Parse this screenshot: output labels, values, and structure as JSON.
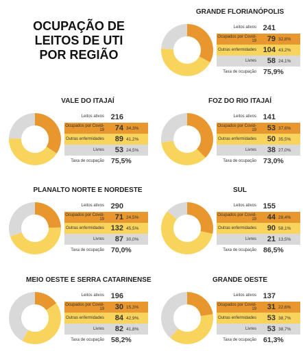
{
  "title": "OCUPAÇÃO DE LEITOS DE UTI POR REGIÃO",
  "chart_data": [
    {
      "type": "pie",
      "title": "GRANDE FLORIANÓPOLIS",
      "total_label": "Leitos ativos",
      "total": 241,
      "categories": [
        "Ocupados por Covid-19",
        "Outras enfermidades",
        "Livres"
      ],
      "colors": [
        "#e8962e",
        "#f9d45c",
        "#d9d9d9"
      ],
      "values": [
        79,
        104,
        58
      ],
      "percents": [
        {
          "value": 32.8,
          "label": "32,8%"
        },
        {
          "value": 43.2,
          "label": "43,2%"
        },
        {
          "value": 24.1,
          "label": "24,1%"
        }
      ],
      "rate_label": "Taxa de ocupação",
      "rate": {
        "value": 75.9,
        "label": "75,9%"
      }
    },
    {
      "type": "pie",
      "title": "VALE DO ITAJAÍ",
      "total_label": "Leitos ativos",
      "total": 216,
      "categories": [
        "Ocupados por Covid-19",
        "Outras enfermidades",
        "Livres"
      ],
      "colors": [
        "#e8962e",
        "#f9d45c",
        "#d9d9d9"
      ],
      "values": [
        74,
        89,
        53
      ],
      "percents": [
        {
          "value": 34.3,
          "label": "34,3%"
        },
        {
          "value": 41.2,
          "label": "41,2%"
        },
        {
          "value": 24.5,
          "label": "24,5%"
        }
      ],
      "rate_label": "Taxa de ocupação",
      "rate": {
        "value": 75.5,
        "label": "75,5%"
      }
    },
    {
      "type": "pie",
      "title": "FOZ DO RIO ITAJAÍ",
      "total_label": "Leitos ativos",
      "total": 141,
      "categories": [
        "Ocupados por Covid-19",
        "Outras enfermidades",
        "Livres"
      ],
      "colors": [
        "#e8962e",
        "#f9d45c",
        "#d9d9d9"
      ],
      "values": [
        53,
        50,
        38
      ],
      "percents": [
        {
          "value": 37.6,
          "label": "37,6%"
        },
        {
          "value": 35.5,
          "label": "35,5%"
        },
        {
          "value": 27.0,
          "label": "27,0%"
        }
      ],
      "rate_label": "Taxa de ocupação",
      "rate": {
        "value": 73.0,
        "label": "73,0%"
      }
    },
    {
      "type": "pie",
      "title": "PLANALTO NORTE E NORDESTE",
      "total_label": "Leitos ativos",
      "total": 290,
      "categories": [
        "Ocupados por Covid-19",
        "Outras enfermidades",
        "Livres"
      ],
      "colors": [
        "#e8962e",
        "#f9d45c",
        "#d9d9d9"
      ],
      "values": [
        71,
        132,
        87
      ],
      "percents": [
        {
          "value": 24.5,
          "label": "24,5%"
        },
        {
          "value": 45.5,
          "label": "45,5%"
        },
        {
          "value": 30.0,
          "label": "30,0%"
        }
      ],
      "rate_label": "Taxa de ocupação",
      "rate": {
        "value": 70.0,
        "label": "70,0%"
      }
    },
    {
      "type": "pie",
      "title": "SUL",
      "total_label": "Leitos ativos",
      "total": 155,
      "categories": [
        "Ocupados por Covid-19",
        "Outras enfermidades",
        "Livres"
      ],
      "colors": [
        "#e8962e",
        "#f9d45c",
        "#d9d9d9"
      ],
      "values": [
        44,
        90,
        21
      ],
      "percents": [
        {
          "value": 28.4,
          "label": "28,4%"
        },
        {
          "value": 58.1,
          "label": "58,1%"
        },
        {
          "value": 13.5,
          "label": "13,5%"
        }
      ],
      "rate_label": "Taxa de ocupação",
      "rate": {
        "value": 86.5,
        "label": "86,5%"
      }
    },
    {
      "type": "pie",
      "title": "MEIO OESTE E SERRA CATARINENSE",
      "total_label": "Leitos ativos",
      "total": 196,
      "categories": [
        "Ocupados por Covid-19",
        "Outras enfermidades",
        "Livres"
      ],
      "colors": [
        "#e8962e",
        "#f9d45c",
        "#d9d9d9"
      ],
      "values": [
        30,
        84,
        82
      ],
      "percents": [
        {
          "value": 15.3,
          "label": "15,3%"
        },
        {
          "value": 42.9,
          "label": "42,9%"
        },
        {
          "value": 41.8,
          "label": "41,8%"
        }
      ],
      "rate_label": "Taxa de ocupação",
      "rate": {
        "value": 58.2,
        "label": "58,2%"
      }
    },
    {
      "type": "pie",
      "title": "GRANDE OESTE",
      "total_label": "Leitos ativos",
      "total": 137,
      "categories": [
        "Ocupados por Covid-19",
        "Outras enfermidades",
        "Livres"
      ],
      "colors": [
        "#e8962e",
        "#f9d45c",
        "#d9d9d9"
      ],
      "values": [
        31,
        53,
        53
      ],
      "percents": [
        {
          "value": 22.6,
          "label": "22,6%"
        },
        {
          "value": 38.7,
          "label": "38,7%"
        },
        {
          "value": 38.7,
          "label": "38,7%"
        }
      ],
      "rate_label": "Taxa de ocupação",
      "rate": {
        "value": 61.3,
        "label": "61,3%"
      }
    }
  ]
}
